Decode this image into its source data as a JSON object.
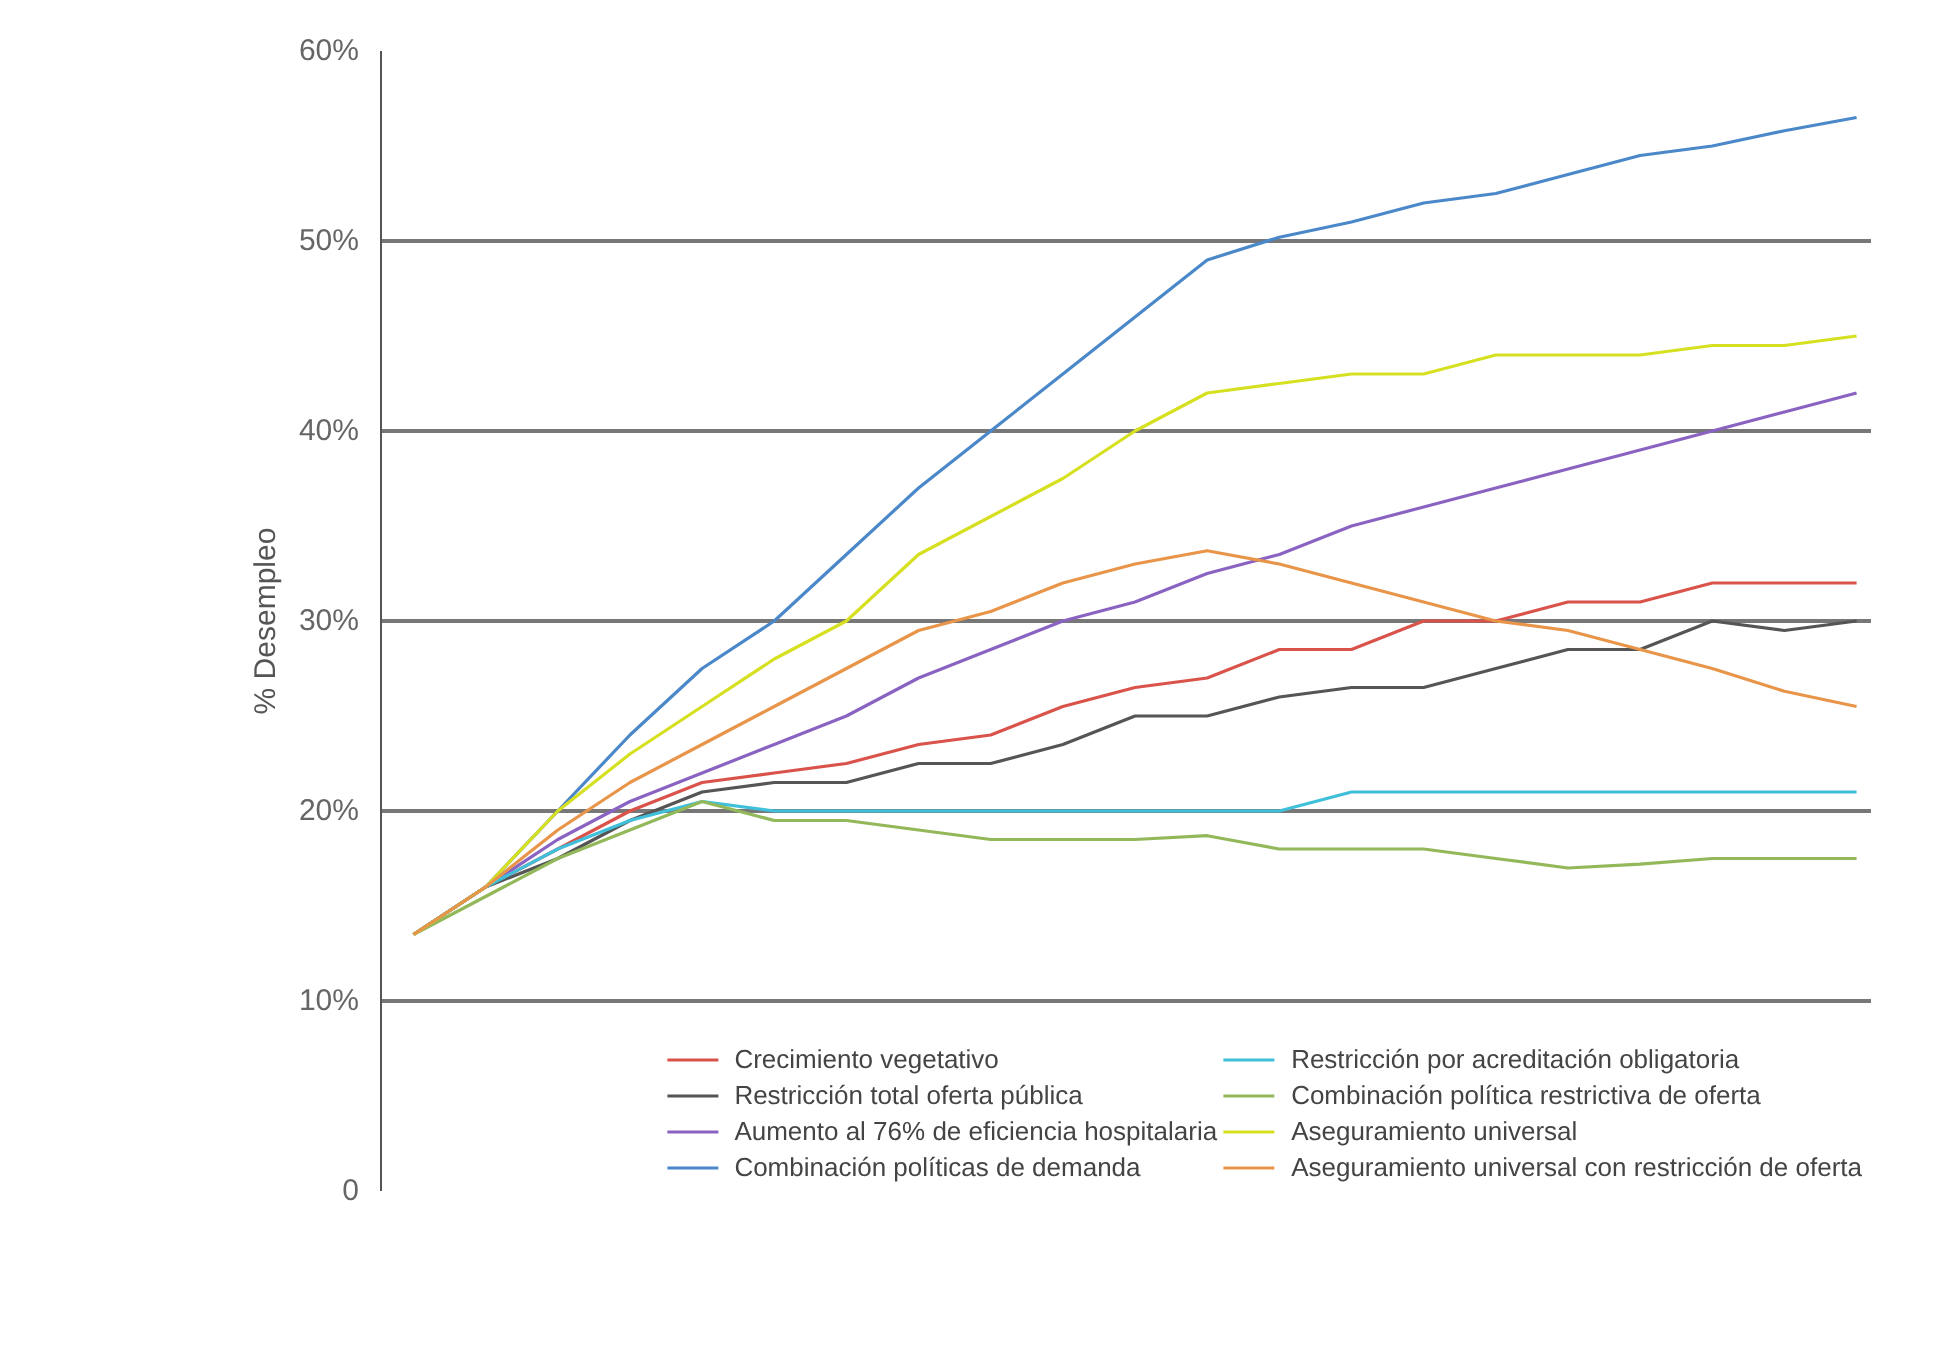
{
  "chart_data": {
    "type": "line",
    "ylabel": "% Desempleo",
    "categories": [
      null,
      null,
      null,
      null,
      null,
      null,
      null,
      null,
      null,
      null,
      null,
      null,
      null,
      null,
      null,
      null,
      null,
      null,
      null,
      null,
      null
    ],
    "ylim": [
      0,
      60
    ],
    "yticks": [
      {
        "value": 0,
        "label": "0"
      },
      {
        "value": 10,
        "label": "10%"
      },
      {
        "value": 20,
        "label": "20%"
      },
      {
        "value": 30,
        "label": "30%"
      },
      {
        "value": 40,
        "label": "40%"
      },
      {
        "value": 50,
        "label": "50%"
      },
      {
        "value": 60,
        "label": "60%"
      }
    ],
    "grid": "y",
    "legend": "bottom",
    "tick_labels": "y",
    "marker": "none",
    "line_style": "solid",
    "series": [
      {
        "name": "Crecimiento vegetativo",
        "color": "#d9534a",
        "values": [
          13.5,
          16,
          18,
          20,
          21.5,
          22,
          22.5,
          23.5,
          24,
          25.5,
          26.5,
          27,
          28.5,
          28.5,
          30,
          30,
          31,
          31,
          32,
          32,
          32
        ]
      },
      {
        "name": "Restricción total oferta pública",
        "color": "#555555",
        "values": [
          13.5,
          16,
          17.5,
          19.5,
          21,
          21.5,
          21.5,
          22.5,
          22.5,
          23.5,
          25,
          25,
          26,
          26.5,
          26.5,
          27.5,
          28.5,
          28.5,
          30,
          29.5,
          30
        ]
      },
      {
        "name": "Aumento al 76% de eficiencia hospitalaria",
        "color": "#8a63c2",
        "values": [
          13.5,
          16,
          18.5,
          20.5,
          22,
          23.5,
          25,
          27,
          28.5,
          30,
          31,
          32.5,
          33.5,
          35,
          36,
          37,
          38,
          39,
          40,
          41,
          42
        ]
      },
      {
        "name": "Combinación políticas de demanda",
        "color": "#4a88c9",
        "values": [
          13.5,
          16,
          20,
          24,
          27.5,
          30,
          33.5,
          37,
          40,
          43,
          46,
          49,
          50.2,
          51,
          52,
          52.5,
          53.5,
          54.5,
          55,
          55.8,
          56.5
        ]
      },
      {
        "name": "Restricción por acreditación obligatoria",
        "color": "#3fbfd9",
        "values": [
          13.5,
          16,
          18,
          19.5,
          20.5,
          20,
          20,
          20,
          20,
          20,
          20,
          20,
          20,
          21,
          21,
          21,
          21,
          21,
          21,
          21,
          21
        ]
      },
      {
        "name": "Combinación política restrictiva de oferta",
        "color": "#93b85a",
        "values": [
          13.5,
          15.5,
          17.5,
          19,
          20.5,
          19.5,
          19.5,
          19,
          18.5,
          18.5,
          18.5,
          18.7,
          18,
          18,
          18,
          17.5,
          17,
          17.2,
          17.5,
          17.5,
          17.5
        ]
      },
      {
        "name": "Aseguramiento universal",
        "color": "#d6e020",
        "values": [
          13.5,
          16,
          20,
          23,
          25.5,
          28,
          30,
          33.5,
          35.5,
          37.5,
          40,
          42,
          42.5,
          43,
          43,
          44,
          44,
          44,
          44.5,
          44.5,
          45
        ]
      },
      {
        "name": "Aseguramiento universal con restricción de oferta",
        "color": "#e8954a",
        "values": [
          13.5,
          16,
          19,
          21.5,
          23.5,
          25.5,
          27.5,
          29.5,
          30.5,
          32,
          33,
          33.7,
          33,
          32,
          31,
          30,
          29.5,
          28.5,
          27.5,
          26.3,
          25.5
        ]
      }
    ]
  }
}
